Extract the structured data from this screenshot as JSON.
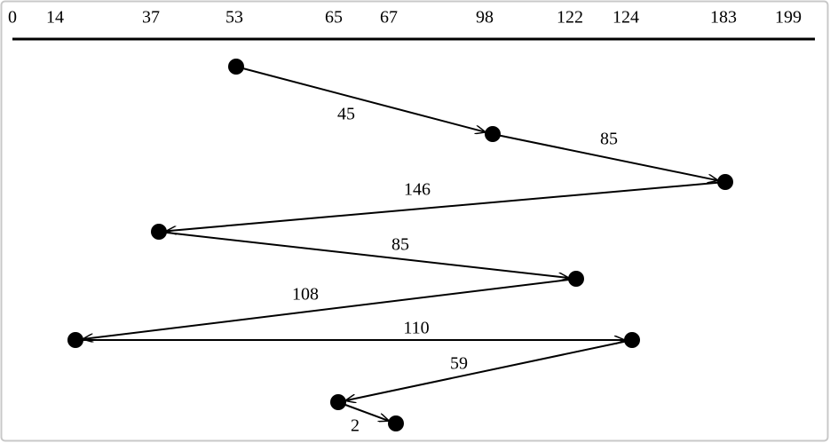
{
  "axis": {
    "ticks": [
      0,
      14,
      37,
      53,
      65,
      67,
      98,
      122,
      124,
      183,
      199
    ]
  },
  "edges": [
    {
      "label": 45
    },
    {
      "label": 85
    },
    {
      "label": 146
    },
    {
      "label": 85
    },
    {
      "label": 108
    },
    {
      "label": 110
    },
    {
      "label": 59
    },
    {
      "label": 2
    }
  ]
}
